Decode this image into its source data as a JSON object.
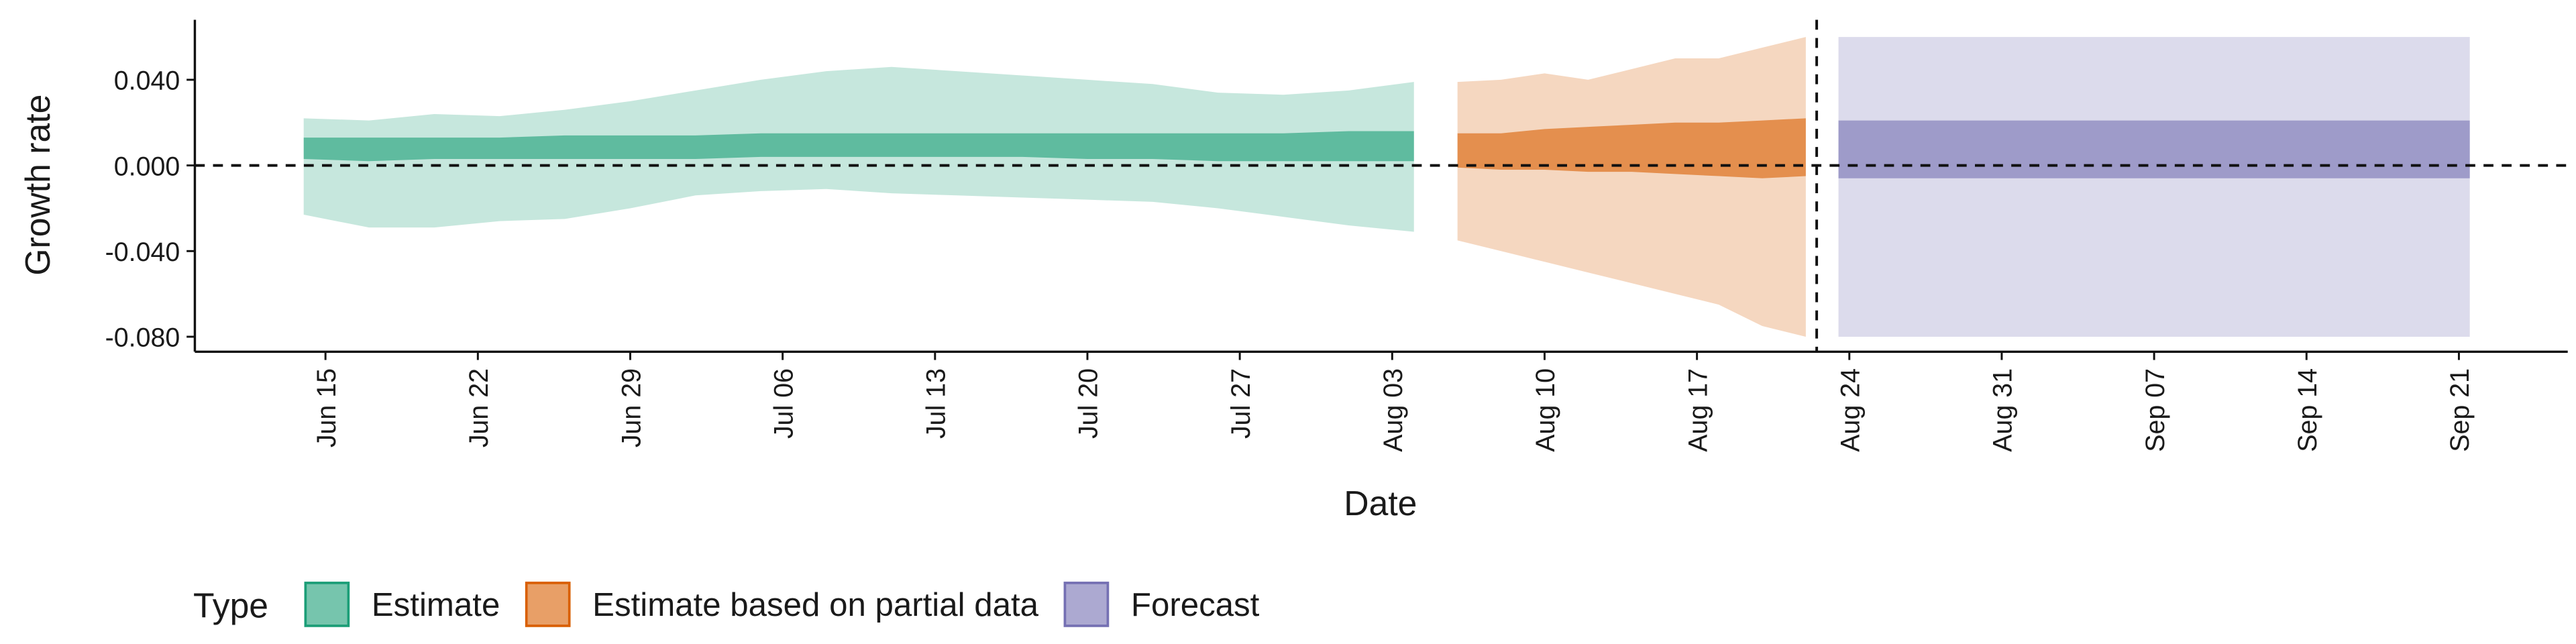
{
  "chart_data": {
    "type": "ribbon",
    "x_label": "Date",
    "y_label": "Growth rate",
    "legend_title": "Type",
    "xlim": [
      -6,
      103
    ],
    "ylim": [
      -0.087,
      0.068
    ],
    "xticks": [
      {
        "value": 0,
        "label": "Jun 15"
      },
      {
        "value": 7,
        "label": "Jun 22"
      },
      {
        "value": 14,
        "label": "Jun 29"
      },
      {
        "value": 21,
        "label": "Jul 06"
      },
      {
        "value": 28,
        "label": "Jul 13"
      },
      {
        "value": 35,
        "label": "Jul 20"
      },
      {
        "value": 42,
        "label": "Jul 27"
      },
      {
        "value": 49,
        "label": "Aug 03"
      },
      {
        "value": 56,
        "label": "Aug 10"
      },
      {
        "value": 63,
        "label": "Aug 17"
      },
      {
        "value": 70,
        "label": "Aug 24"
      },
      {
        "value": 77,
        "label": "Aug 31"
      },
      {
        "value": 84,
        "label": "Sep 07"
      },
      {
        "value": 91,
        "label": "Sep 14"
      },
      {
        "value": 98,
        "label": "Sep 21"
      }
    ],
    "yticks": [
      {
        "value": 0.04,
        "label": "0.040"
      },
      {
        "value": 0,
        "label": "0.000"
      },
      {
        "value": -0.04,
        "label": "-0.040"
      },
      {
        "value": -0.08,
        "label": "-0.080"
      }
    ],
    "hline": 0,
    "vline": 68.5,
    "series": [
      {
        "name": "Estimate",
        "color": "#1b9e77",
        "x": [
          -1,
          2,
          5,
          8,
          11,
          14,
          17,
          20,
          23,
          26,
          29,
          32,
          35,
          38,
          41,
          44,
          47,
          50
        ],
        "upper_outer": [
          0.022,
          0.021,
          0.024,
          0.023,
          0.026,
          0.03,
          0.035,
          0.04,
          0.044,
          0.046,
          0.044,
          0.042,
          0.04,
          0.038,
          0.034,
          0.033,
          0.035,
          0.039
        ],
        "lower_outer": [
          -0.023,
          -0.029,
          -0.029,
          -0.026,
          -0.025,
          -0.02,
          -0.014,
          -0.012,
          -0.011,
          -0.013,
          -0.014,
          -0.015,
          -0.016,
          -0.017,
          -0.02,
          -0.024,
          -0.028,
          -0.031
        ],
        "upper_inner": [
          0.013,
          0.013,
          0.013,
          0.013,
          0.014,
          0.014,
          0.014,
          0.015,
          0.015,
          0.015,
          0.015,
          0.015,
          0.015,
          0.015,
          0.015,
          0.015,
          0.016,
          0.016
        ],
        "lower_inner": [
          0.003,
          0.002,
          0.003,
          0.003,
          0.003,
          0.003,
          0.003,
          0.004,
          0.004,
          0.004,
          0.004,
          0.004,
          0.003,
          0.003,
          0.002,
          0.002,
          0.002,
          0.002
        ]
      },
      {
        "name": "Estimate based on partial data",
        "color": "#d95f02",
        "x": [
          52,
          54,
          56,
          58,
          60,
          62,
          64,
          66,
          68
        ],
        "upper_outer": [
          0.039,
          0.04,
          0.043,
          0.04,
          0.045,
          0.05,
          0.05,
          0.055,
          0.06
        ],
        "lower_outer": [
          -0.035,
          -0.04,
          -0.045,
          -0.05,
          -0.055,
          -0.06,
          -0.065,
          -0.075,
          -0.08
        ],
        "upper_inner": [
          0.015,
          0.015,
          0.017,
          0.018,
          0.019,
          0.02,
          0.02,
          0.021,
          0.022
        ],
        "lower_inner": [
          -0.001,
          -0.002,
          -0.002,
          -0.003,
          -0.003,
          -0.004,
          -0.005,
          -0.006,
          -0.005
        ]
      },
      {
        "name": "Forecast",
        "color": "#7570b3",
        "x": [
          69.5,
          98.5
        ],
        "upper_outer": [
          0.06,
          0.06
        ],
        "lower_outer": [
          -0.08,
          -0.08
        ],
        "upper_inner": [
          0.021,
          0.021
        ],
        "lower_inner": [
          -0.006,
          -0.006
        ]
      }
    ]
  }
}
